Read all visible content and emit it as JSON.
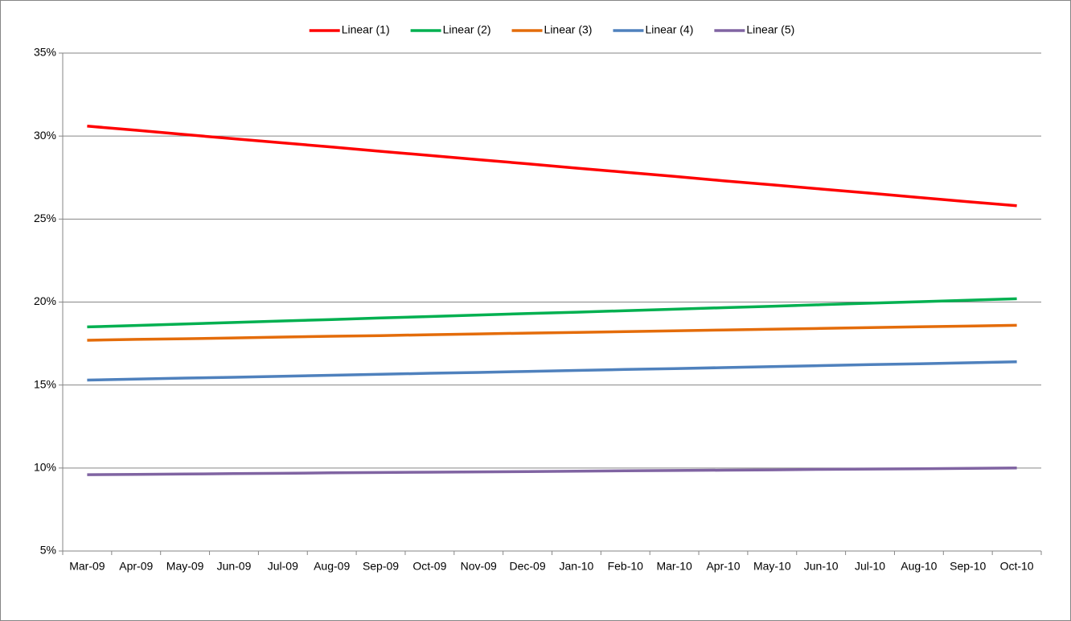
{
  "chart_data": {
    "type": "line",
    "categories": [
      "Mar-09",
      "Apr-09",
      "May-09",
      "Jun-09",
      "Jul-09",
      "Aug-09",
      "Sep-09",
      "Oct-09",
      "Nov-09",
      "Dec-09",
      "Jan-10",
      "Feb-10",
      "Mar-10",
      "Apr-10",
      "May-10",
      "Jun-10",
      "Jul-10",
      "Aug-10",
      "Sep-10",
      "Oct-10"
    ],
    "series": [
      {
        "name": "Linear (1)",
        "color": "#ff0000",
        "values": [
          30.6,
          30.35,
          30.09,
          29.84,
          29.59,
          29.34,
          29.08,
          28.83,
          28.58,
          28.33,
          28.07,
          27.82,
          27.57,
          27.31,
          27.06,
          26.81,
          26.56,
          26.3,
          26.05,
          25.8
        ]
      },
      {
        "name": "Linear (2)",
        "color": "#00b050",
        "values": [
          18.5,
          18.59,
          18.68,
          18.77,
          18.86,
          18.95,
          19.04,
          19.13,
          19.22,
          19.31,
          19.39,
          19.48,
          19.57,
          19.66,
          19.75,
          19.84,
          19.93,
          20.02,
          20.11,
          20.2
        ]
      },
      {
        "name": "Linear (3)",
        "color": "#e46c0a",
        "values": [
          17.7,
          17.75,
          17.79,
          17.84,
          17.89,
          17.94,
          17.98,
          18.03,
          18.08,
          18.13,
          18.17,
          18.22,
          18.27,
          18.32,
          18.36,
          18.41,
          18.46,
          18.51,
          18.55,
          18.6
        ]
      },
      {
        "name": "Linear (4)",
        "color": "#4f81bd",
        "values": [
          15.3,
          15.36,
          15.42,
          15.47,
          15.53,
          15.59,
          15.65,
          15.71,
          15.76,
          15.82,
          15.88,
          15.94,
          15.99,
          16.05,
          16.11,
          16.17,
          16.23,
          16.28,
          16.34,
          16.4
        ]
      },
      {
        "name": "Linear (5)",
        "color": "#8064a2",
        "values": [
          9.6,
          9.62,
          9.64,
          9.66,
          9.68,
          9.71,
          9.73,
          9.75,
          9.77,
          9.79,
          9.81,
          9.83,
          9.85,
          9.87,
          9.89,
          9.92,
          9.94,
          9.96,
          9.98,
          10.0
        ]
      }
    ],
    "ylim": [
      5,
      35
    ],
    "yticks": [
      {
        "value": 5,
        "label": "5%"
      },
      {
        "value": 10,
        "label": "10%"
      },
      {
        "value": 15,
        "label": "15%"
      },
      {
        "value": 20,
        "label": "20%"
      },
      {
        "value": 25,
        "label": "25%"
      },
      {
        "value": 30,
        "label": "30%"
      },
      {
        "value": 35,
        "label": "35%"
      }
    ],
    "grid": true,
    "legend": "top"
  }
}
